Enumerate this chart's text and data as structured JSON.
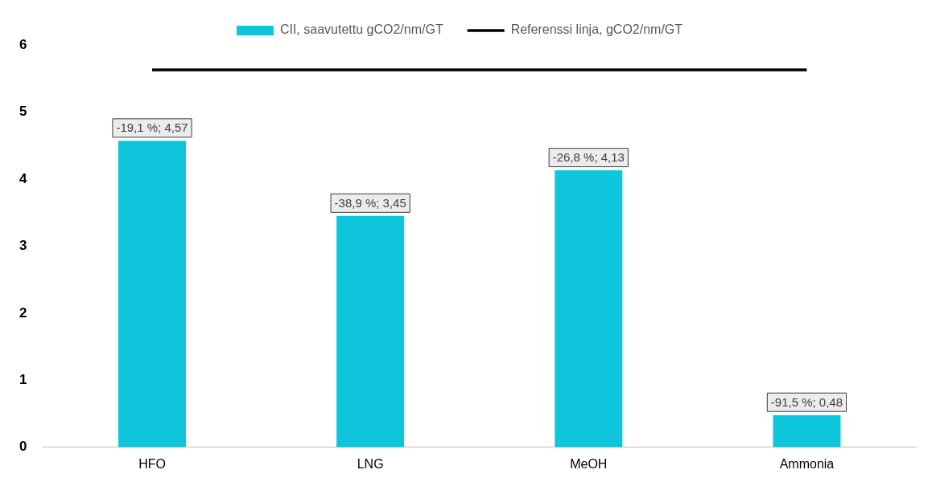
{
  "chart_data": {
    "type": "bar",
    "categories": [
      "HFO",
      "LNG",
      "MeOH",
      "Ammonia"
    ],
    "series": [
      {
        "name": "CII, saavutettu gCO2/nm/GT",
        "color": "#0fc5dc",
        "values": [
          4.57,
          3.45,
          4.13,
          0.48
        ],
        "value_labels": [
          "-19,1 %; 4,57",
          "-38,9 %; 3,45",
          "-26,8 %; 4,13",
          "-91,5 %; 0,48"
        ]
      },
      {
        "name": "Referenssi linja, gCO2/nm/GT",
        "type": "line",
        "color": "#000000",
        "values": [
          5.63,
          5.63,
          5.63,
          5.63
        ]
      }
    ],
    "ylim": [
      0,
      6
    ],
    "yticks": [
      0,
      1,
      2,
      3,
      4,
      5,
      6
    ],
    "grid": false,
    "legend": "top",
    "marker": "none",
    "line_style": "solid"
  }
}
